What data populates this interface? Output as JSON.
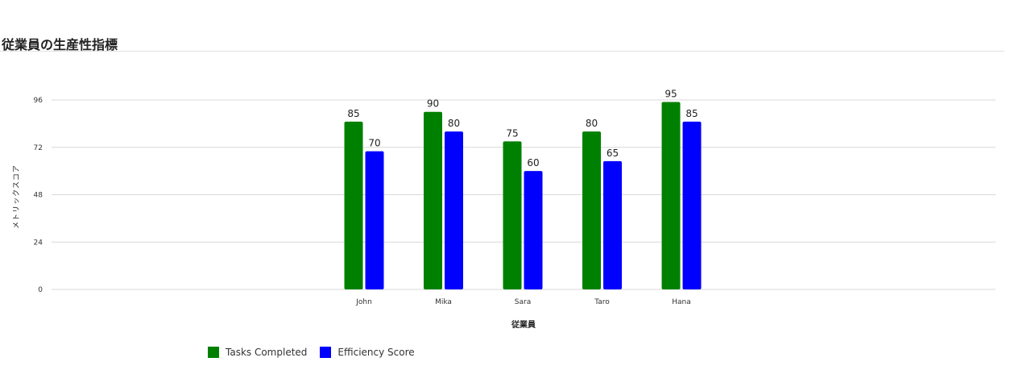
{
  "header": {
    "title": "従業員の生産性指標"
  },
  "chart_data": {
    "type": "bar",
    "title": "従業員の生産性指標",
    "xlabel": "従業員",
    "ylabel": "メトリックスコア",
    "categories": [
      "John",
      "Mika",
      "Sara",
      "Taro",
      "Hana"
    ],
    "series": [
      {
        "name": "Tasks Completed",
        "color": "#008000",
        "values": [
          85,
          90,
          75,
          80,
          95
        ]
      },
      {
        "name": "Efficiency Score",
        "color": "#0000ff",
        "values": [
          70,
          80,
          60,
          65,
          85
        ]
      }
    ],
    "yticks": [
      "0",
      "24",
      "48",
      "72",
      "96"
    ],
    "ylim": [
      0,
      96
    ],
    "grid": true,
    "legend_position": "bottom-left",
    "data_labels": true
  }
}
